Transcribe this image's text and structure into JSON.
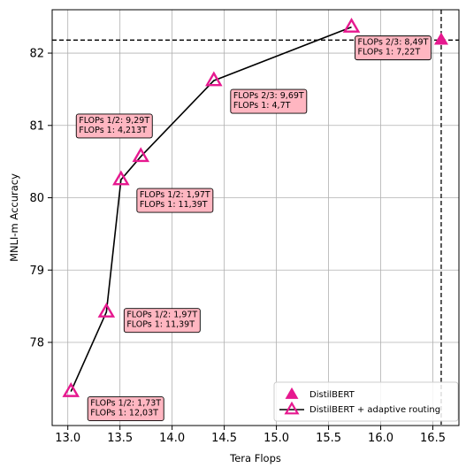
{
  "chart_data": {
    "type": "scatter",
    "xlabel": "Tera Flops",
    "ylabel": "MNLI-m Accuracy",
    "xlim": [
      12.85,
      16.75
    ],
    "ylim": [
      76.85,
      82.6
    ],
    "xticks": [
      "13.0",
      "13.5",
      "14.0",
      "14.5",
      "15.0",
      "15.5",
      "16.0",
      "16.5"
    ],
    "yticks": [
      "78",
      "79",
      "80",
      "81",
      "82"
    ],
    "grid": true,
    "legend_position": "bottom-right",
    "series": [
      {
        "name": "DistilBERT",
        "kind": "marker",
        "marker": "filled-triangle",
        "color": "#e6198f",
        "points": [
          {
            "x": 16.58,
            "y": 82.18
          }
        ],
        "reference_lines": {
          "x": 16.58,
          "y": 82.18
        }
      },
      {
        "name": "DistilBERT + adaptive routing",
        "kind": "line",
        "marker": "open-triangle",
        "color": "#e6198f",
        "line_color": "#000000",
        "points": [
          {
            "x": 13.03,
            "y": 77.32
          },
          {
            "x": 13.37,
            "y": 78.42
          },
          {
            "x": 13.51,
            "y": 80.25
          },
          {
            "x": 13.7,
            "y": 80.57
          },
          {
            "x": 14.4,
            "y": 81.62
          },
          {
            "x": 15.72,
            "y": 82.36
          }
        ]
      }
    ],
    "annotations": [
      {
        "lines": [
          "FLOPs 1/2: 1,73T",
          "FLOPs 1: 12,03T"
        ],
        "anchor_x": 13.03,
        "anchor_y": 77.32
      },
      {
        "lines": [
          "FLOPs 1/2: 1,97T",
          "FLOPs 1: 11,39T"
        ],
        "anchor_x": 13.37,
        "anchor_y": 78.42
      },
      {
        "lines": [
          "FLOPs 1/2: 1,97T",
          "FLOPs 1: 11,39T"
        ],
        "anchor_x": 13.51,
        "anchor_y": 80.25
      },
      {
        "lines": [
          "FLOPs 1/2: 9,29T",
          "FLOPs 1: 4,213T"
        ],
        "anchor_x": 13.7,
        "anchor_y": 80.57
      },
      {
        "lines": [
          "FLOPs 2/3: 9,69T",
          "FLOPs 1: 4,7T"
        ],
        "anchor_x": 14.4,
        "anchor_y": 81.62
      },
      {
        "lines": [
          "FLOPs 2/3: 8,49T",
          "FLOPs 1: 7,22T"
        ],
        "anchor_x": 15.72,
        "anchor_y": 82.36
      }
    ],
    "annotation_box_color": "#ffb6c1"
  }
}
